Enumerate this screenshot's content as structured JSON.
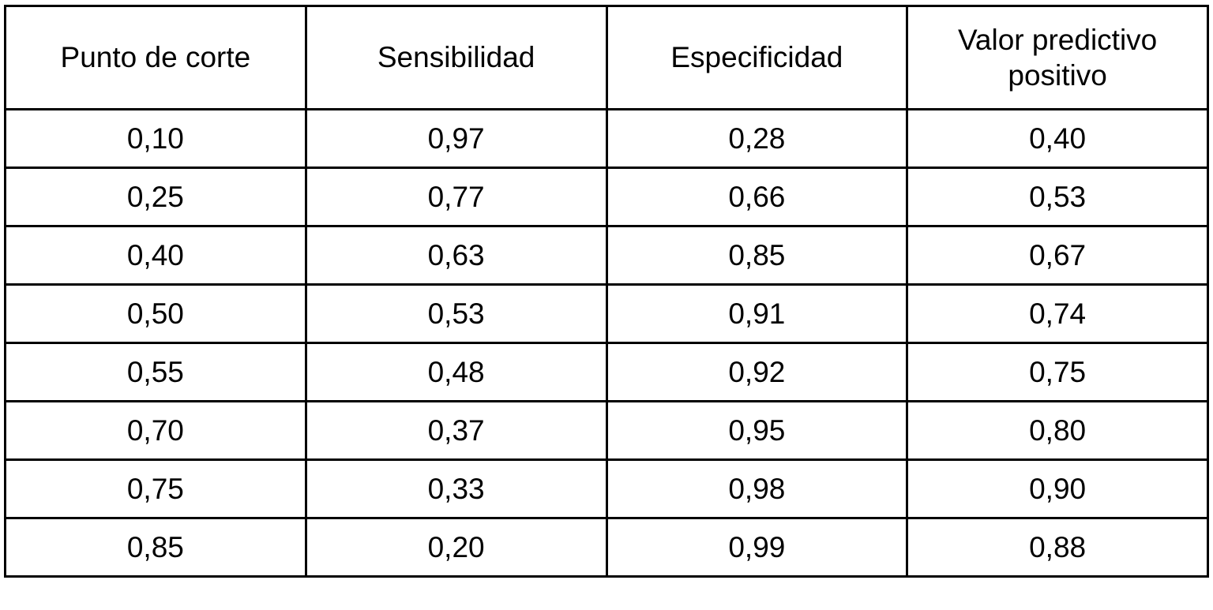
{
  "table": {
    "columns": [
      "Punto de corte",
      "Sensibilidad",
      "Especificidad",
      "Valor predictivo positivo"
    ],
    "rows": [
      [
        "0,10",
        "0,97",
        "0,28",
        "0,40"
      ],
      [
        "0,25",
        "0,77",
        "0,66",
        "0,53"
      ],
      [
        "0,40",
        "0,63",
        "0,85",
        "0,67"
      ],
      [
        "0,50",
        "0,53",
        "0,91",
        "0,74"
      ],
      [
        "0,55",
        "0,48",
        "0,92",
        "0,75"
      ],
      [
        "0,70",
        "0,37",
        "0,95",
        "0,80"
      ],
      [
        "0,75",
        "0,33",
        "0,98",
        "0,90"
      ],
      [
        "0,85",
        "0,20",
        "0,99",
        "0,88"
      ]
    ],
    "colors": {
      "border": "#000000",
      "text": "#000000",
      "background": "#ffffff"
    }
  },
  "chart_data": {
    "type": "table",
    "title": "",
    "columns": [
      "Punto de corte",
      "Sensibilidad",
      "Especificidad",
      "Valor predictivo positivo"
    ],
    "rows": [
      {
        "punto_de_corte": 0.1,
        "sensibilidad": 0.97,
        "especificidad": 0.28,
        "valor_predictivo_positivo": 0.4
      },
      {
        "punto_de_corte": 0.25,
        "sensibilidad": 0.77,
        "especificidad": 0.66,
        "valor_predictivo_positivo": 0.53
      },
      {
        "punto_de_corte": 0.4,
        "sensibilidad": 0.63,
        "especificidad": 0.85,
        "valor_predictivo_positivo": 0.67
      },
      {
        "punto_de_corte": 0.5,
        "sensibilidad": 0.53,
        "especificidad": 0.91,
        "valor_predictivo_positivo": 0.74
      },
      {
        "punto_de_corte": 0.55,
        "sensibilidad": 0.48,
        "especificidad": 0.92,
        "valor_predictivo_positivo": 0.75
      },
      {
        "punto_de_corte": 0.7,
        "sensibilidad": 0.37,
        "especificidad": 0.95,
        "valor_predictivo_positivo": 0.8
      },
      {
        "punto_de_corte": 0.75,
        "sensibilidad": 0.33,
        "especificidad": 0.98,
        "valor_predictivo_positivo": 0.9
      },
      {
        "punto_de_corte": 0.85,
        "sensibilidad": 0.2,
        "especificidad": 0.99,
        "valor_predictivo_positivo": 0.88
      }
    ],
    "decimal_separator": ","
  }
}
